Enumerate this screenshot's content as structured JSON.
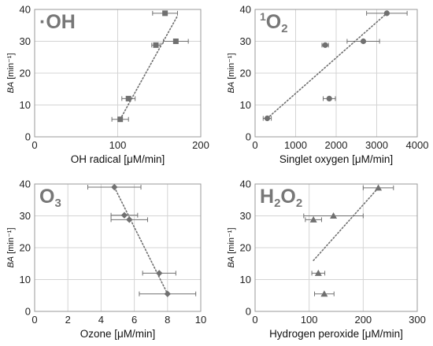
{
  "chart_data": [
    {
      "type": "scatter",
      "species_label": [
        {
          "t": "·OH",
          "s": "normal"
        }
      ],
      "xlabel": "OH radical [μM/min]",
      "ylabel_italic": "BA",
      "ylabel_rest": " [min⁻¹]",
      "xlim": [
        0,
        200
      ],
      "ylim": [
        0,
        40
      ],
      "xticks": [
        "0",
        "100",
        "200"
      ],
      "yticks": [
        "0",
        "10",
        "20",
        "30",
        "40"
      ],
      "marker": "square",
      "grid": true,
      "points": [
        {
          "x": 103,
          "y": 5.5,
          "xerr": 10
        },
        {
          "x": 113,
          "y": 12,
          "xerr": 8
        },
        {
          "x": 146,
          "y": 28.8,
          "xerr": 5
        },
        {
          "x": 170,
          "y": 30,
          "xerr": 15
        },
        {
          "x": 157,
          "y": 38.8,
          "xerr": 15
        }
      ],
      "trend": [
        [
          103,
          5.5
        ],
        [
          172,
          38
        ]
      ]
    },
    {
      "type": "scatter",
      "species_label": [
        {
          "t": "1",
          "s": "sup"
        },
        {
          "t": "O",
          "s": "normal"
        },
        {
          "t": "2",
          "s": "sub"
        }
      ],
      "xlabel": "Singlet oxygen [μM/min]",
      "ylabel_italic": "BA",
      "ylabel_rest": " [min⁻¹]",
      "xlim": [
        0,
        4000
      ],
      "ylim": [
        0,
        40
      ],
      "xticks": [
        "0",
        "1000",
        "2000",
        "3000",
        "4000"
      ],
      "yticks": [
        "0",
        "10",
        "20",
        "30",
        "40"
      ],
      "marker": "circle",
      "grid": true,
      "points": [
        {
          "x": 300,
          "y": 5.8,
          "xerr": 100
        },
        {
          "x": 1830,
          "y": 12,
          "xerr": 150
        },
        {
          "x": 1730,
          "y": 28.8,
          "xerr": 80
        },
        {
          "x": 2670,
          "y": 30,
          "xerr": 400
        },
        {
          "x": 3250,
          "y": 38.8,
          "xerr": 500
        }
      ],
      "trend": [
        [
          300,
          5.8
        ],
        [
          3250,
          38.8
        ]
      ]
    },
    {
      "type": "scatter",
      "species_label": [
        {
          "t": "O",
          "s": "normal"
        },
        {
          "t": "3",
          "s": "sub"
        }
      ],
      "xlabel": "Ozone [μM/min]",
      "ylabel_italic": "BA",
      "ylabel_rest": " [min⁻¹]",
      "xlim": [
        0,
        10
      ],
      "ylim": [
        0,
        40
      ],
      "xticks": [
        "0",
        "2",
        "4",
        "6",
        "8",
        "10"
      ],
      "yticks": [
        "0",
        "10",
        "20",
        "30",
        "40"
      ],
      "marker": "diamond",
      "grid": true,
      "points": [
        {
          "x": 4.8,
          "y": 39,
          "xerr": 1.6
        },
        {
          "x": 5.4,
          "y": 30.2,
          "xerr": 0.8
        },
        {
          "x": 5.7,
          "y": 28.8,
          "xerr": 1.1
        },
        {
          "x": 7.5,
          "y": 12,
          "xerr": 1.0
        },
        {
          "x": 8.0,
          "y": 5.5,
          "xerr": 1.7
        }
      ],
      "trend": [
        [
          4.8,
          39
        ],
        [
          8.0,
          5.5
        ]
      ]
    },
    {
      "type": "scatter",
      "species_label": [
        {
          "t": "H",
          "s": "normal"
        },
        {
          "t": "2",
          "s": "sub"
        },
        {
          "t": "O",
          "s": "normal"
        },
        {
          "t": "2",
          "s": "sub"
        }
      ],
      "xlabel": "Hydrogen peroxide [μM/min]",
      "ylabel_italic": "BA",
      "ylabel_rest": " [min⁻¹]",
      "xlim": [
        0,
        300
      ],
      "ylim": [
        0,
        40
      ],
      "xticks": [
        "0",
        "100",
        "200",
        "300"
      ],
      "yticks": [
        "0",
        "10",
        "20",
        "30",
        "40"
      ],
      "marker": "triangle",
      "grid": true,
      "points": [
        {
          "x": 128,
          "y": 5.5,
          "xerr": 18
        },
        {
          "x": 117,
          "y": 12,
          "xerr": 12
        },
        {
          "x": 108,
          "y": 28.8,
          "xerr": 15
        },
        {
          "x": 145,
          "y": 30,
          "xerr": 55
        },
        {
          "x": 228,
          "y": 38.8,
          "xerr": 28
        }
      ],
      "trend": [
        [
          108,
          16
        ],
        [
          228,
          38.8
        ]
      ]
    }
  ]
}
